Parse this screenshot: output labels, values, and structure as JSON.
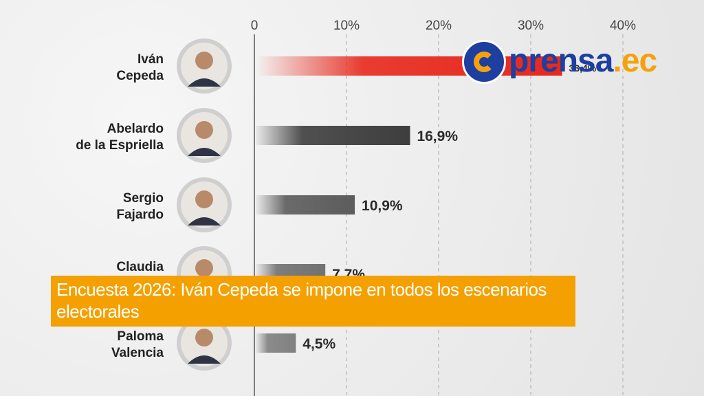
{
  "chart_data": {
    "type": "bar",
    "orientation": "horizontal",
    "title": "",
    "xlabel": "",
    "ylabel": "",
    "xlim": [
      0,
      40
    ],
    "ticks": [
      0,
      10,
      20,
      30,
      40
    ],
    "tick_labels": [
      "0",
      "10%",
      "20%",
      "30%",
      "40%"
    ],
    "grid": true,
    "categories": [
      [
        "Iván",
        "Cepeda"
      ],
      [
        "Abelardo",
        "de la Espriella"
      ],
      [
        "Sergio",
        "Fajardo"
      ],
      [
        "Claudia",
        ""
      ],
      [
        "Paloma",
        "Valencia"
      ]
    ],
    "values": [
      33.4,
      16.9,
      10.9,
      7.7,
      4.5
    ],
    "value_labels": [
      "33,4%",
      "16,9%",
      "10,9%",
      "7,7%",
      "4,5%"
    ],
    "bar_colors": [
      "#e8281c",
      "#3e3e3e",
      "#5c5c5c",
      "#717171",
      "#808080"
    ]
  },
  "logo": {
    "text_main": "prensa",
    "text_suffix": ".ec",
    "brand_blue": "#1d3fa0",
    "brand_orange": "#f6a10c"
  },
  "headline": {
    "text": "Encuesta 2026: Iván Cepeda se impone en todos los escenarios electorales",
    "background": "#f4a000"
  }
}
